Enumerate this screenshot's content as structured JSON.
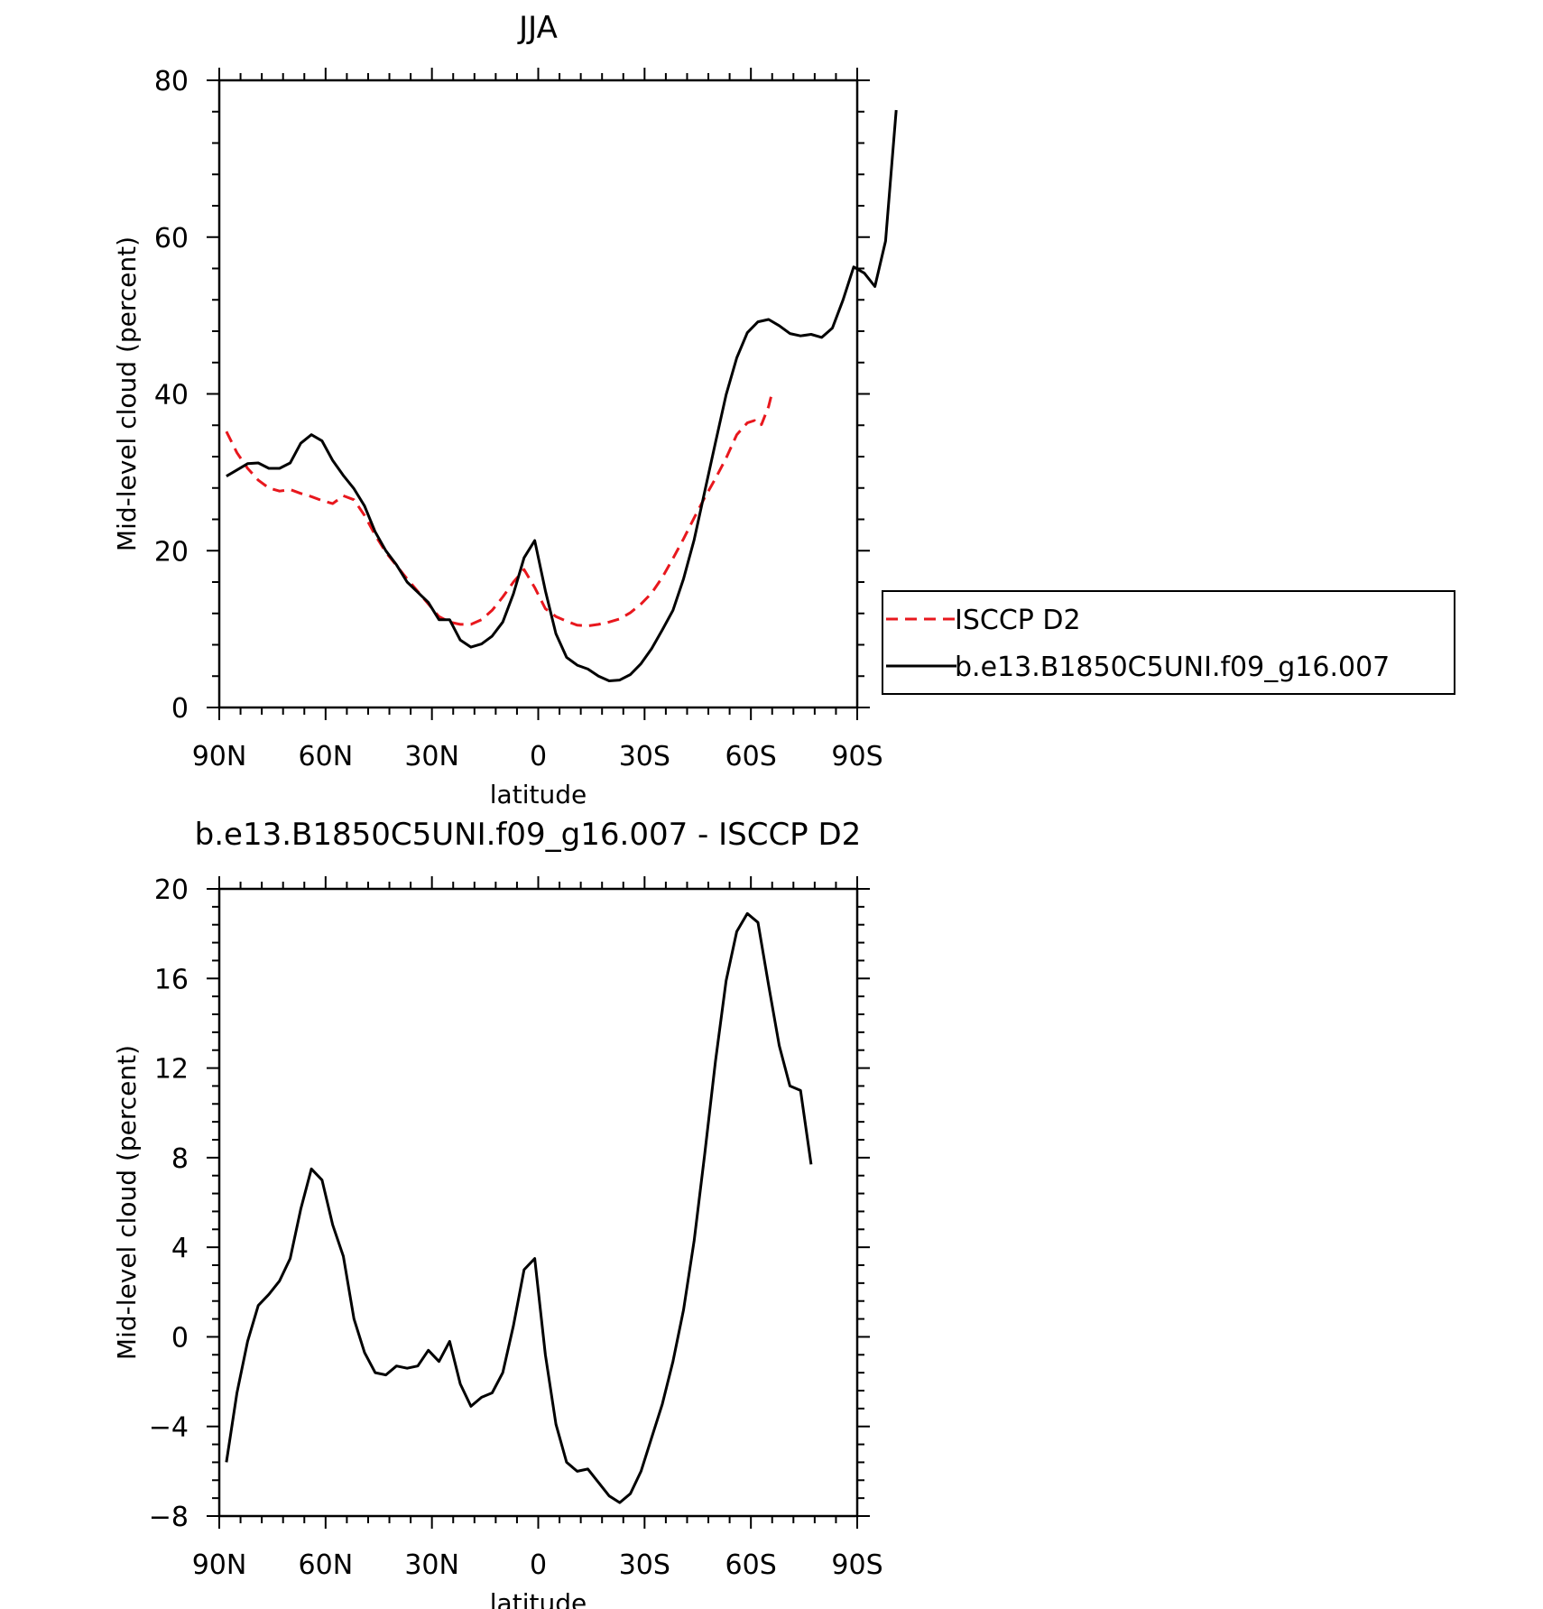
{
  "chart_data": [
    {
      "type": "line",
      "title": "JJA",
      "xlabel": "latitude",
      "ylabel": "Mid-level cloud (percent)",
      "xlim": [
        90,
        -90
      ],
      "ylim": [
        0,
        80
      ],
      "x_ticks": [
        {
          "value": 90,
          "label": "90N"
        },
        {
          "value": 60,
          "label": "60N"
        },
        {
          "value": 30,
          "label": "30N"
        },
        {
          "value": 0,
          "label": "0"
        },
        {
          "value": -30,
          "label": "30S"
        },
        {
          "value": -60,
          "label": "60S"
        },
        {
          "value": -90,
          "label": "90S"
        }
      ],
      "y_ticks": [
        {
          "value": 0,
          "label": "0"
        },
        {
          "value": 20,
          "label": "20"
        },
        {
          "value": 40,
          "label": "40"
        },
        {
          "value": 60,
          "label": "60"
        },
        {
          "value": 80,
          "label": "80"
        }
      ],
      "legend": {
        "position": "right"
      },
      "series": [
        {
          "name": "ISCCP D2",
          "color": "#e8171d",
          "dash": true,
          "points": [
            [
              88,
              35.2
            ],
            [
              85,
              32.5
            ],
            [
              82,
              30.5
            ],
            [
              79,
              29
            ],
            [
              76,
              28
            ],
            [
              73,
              27.6
            ],
            [
              70,
              27.8
            ],
            [
              67,
              27.3
            ],
            [
              64,
              26.9
            ],
            [
              61,
              26.4
            ],
            [
              58,
              26
            ],
            [
              55,
              27
            ],
            [
              52,
              26.5
            ],
            [
              49,
              24.5
            ],
            [
              46,
              22
            ],
            [
              43,
              19.8
            ],
            [
              40,
              18.1
            ],
            [
              37,
              16.4
            ],
            [
              34,
              14.8
            ],
            [
              31,
              13.2
            ],
            [
              28,
              11.6
            ],
            [
              25,
              10.9
            ],
            [
              22,
              10.6
            ],
            [
              19,
              10.6
            ],
            [
              16,
              11.2
            ],
            [
              13,
              12.4
            ],
            [
              10,
              14.1
            ],
            [
              7,
              16
            ],
            [
              4,
              17.6
            ],
            [
              1,
              15.3
            ],
            [
              -2,
              12.6
            ],
            [
              -5,
              11.6
            ],
            [
              -8,
              11
            ],
            [
              -11,
              10.5
            ],
            [
              -14,
              10.4
            ],
            [
              -17,
              10.6
            ],
            [
              -20,
              10.9
            ],
            [
              -23,
              11.3
            ],
            [
              -26,
              12.1
            ],
            [
              -29,
              13.2
            ],
            [
              -32,
              14.6
            ],
            [
              -35,
              16.6
            ],
            [
              -38,
              19
            ],
            [
              -41,
              21.5
            ],
            [
              -44,
              24.2
            ],
            [
              -47,
              26.8
            ],
            [
              -50,
              29.2
            ],
            [
              -53,
              31.8
            ],
            [
              -56,
              34.8
            ],
            [
              -59,
              36.3
            ],
            [
              -61,
              36.6
            ],
            [
              -62,
              36
            ],
            [
              -63,
              36.1
            ],
            [
              -65,
              38.4
            ],
            [
              -66,
              40.2
            ]
          ]
        },
        {
          "name": "b.e13.B1850C5UNI.f09_g16.007",
          "color": "#000000",
          "dash": false,
          "points": [
            [
              88,
              29.5
            ],
            [
              85,
              30.3
            ],
            [
              82,
              31.1
            ],
            [
              79,
              31.2
            ],
            [
              76,
              30.5
            ],
            [
              73,
              30.5
            ],
            [
              70,
              31.2
            ],
            [
              67,
              33.7
            ],
            [
              64,
              34.8
            ],
            [
              61,
              34
            ],
            [
              58,
              31.5
            ],
            [
              55,
              29.6
            ],
            [
              52,
              27.9
            ],
            [
              49,
              25.7
            ],
            [
              46,
              22.4
            ],
            [
              43,
              20
            ],
            [
              40,
              18.2
            ],
            [
              37,
              16
            ],
            [
              34,
              14.7
            ],
            [
              31,
              13.4
            ],
            [
              28,
              11.2
            ],
            [
              25,
              11.2
            ],
            [
              22,
              8.6
            ],
            [
              19,
              7.7
            ],
            [
              16,
              8.1
            ],
            [
              13,
              9.1
            ],
            [
              10,
              10.9
            ],
            [
              7,
              14.5
            ],
            [
              4,
              19.1
            ],
            [
              1,
              21.3
            ],
            [
              -2,
              14.9
            ],
            [
              -5,
              9.4
            ],
            [
              -8,
              6.4
            ],
            [
              -11,
              5.4
            ],
            [
              -14,
              4.9
            ],
            [
              -17,
              4
            ],
            [
              -20,
              3.4
            ],
            [
              -23,
              3.5
            ],
            [
              -26,
              4.2
            ],
            [
              -29,
              5.6
            ],
            [
              -32,
              7.5
            ],
            [
              -35,
              9.9
            ],
            [
              -38,
              12.4
            ],
            [
              -41,
              16.4
            ],
            [
              -44,
              21.4
            ],
            [
              -47,
              27.6
            ],
            [
              -50,
              33.8
            ],
            [
              -53,
              39.9
            ],
            [
              -56,
              44.6
            ],
            [
              -59,
              47.8
            ],
            [
              -62,
              49.2
            ],
            [
              -65,
              49.5
            ],
            [
              -68,
              48.7
            ],
            [
              -71,
              47.7
            ],
            [
              -74,
              47.4
            ],
            [
              -77,
              47.6
            ],
            [
              -80,
              47.2
            ],
            [
              -83,
              48.4
            ],
            [
              -86,
              52
            ],
            [
              -89,
              56.2
            ],
            [
              -92,
              55.4
            ],
            [
              -95,
              53.7
            ],
            [
              -98,
              59.5
            ],
            [
              -101,
              76.2
            ]
          ]
        }
      ]
    },
    {
      "type": "line",
      "title": "b.e13.B1850C5UNI.f09_g16.007 - ISCCP D2",
      "xlabel": "latitude",
      "ylabel": "Mid-level cloud (percent)",
      "xlim": [
        90,
        -90
      ],
      "ylim": [
        -8,
        20
      ],
      "x_ticks": [
        {
          "value": 90,
          "label": "90N"
        },
        {
          "value": 60,
          "label": "60N"
        },
        {
          "value": 30,
          "label": "30N"
        },
        {
          "value": 0,
          "label": "0"
        },
        {
          "value": -30,
          "label": "30S"
        },
        {
          "value": -60,
          "label": "60S"
        },
        {
          "value": -90,
          "label": "90S"
        }
      ],
      "y_ticks": [
        {
          "value": -8,
          "label": "−8"
        },
        {
          "value": -4,
          "label": "−4"
        },
        {
          "value": 0,
          "label": "0"
        },
        {
          "value": 4,
          "label": "4"
        },
        {
          "value": 8,
          "label": "8"
        },
        {
          "value": 12,
          "label": "12"
        },
        {
          "value": 16,
          "label": "16"
        },
        {
          "value": 20,
          "label": "20"
        }
      ],
      "series": [
        {
          "color": "#000000",
          "dash": false,
          "points": [
            [
              88,
              -5.6
            ],
            [
              85,
              -2.5
            ],
            [
              82,
              -0.2
            ],
            [
              79,
              1.4
            ],
            [
              76,
              1.9
            ],
            [
              73,
              2.5
            ],
            [
              70,
              3.5
            ],
            [
              67,
              5.7
            ],
            [
              64,
              7.5
            ],
            [
              61,
              7
            ],
            [
              58,
              5
            ],
            [
              55,
              3.6
            ],
            [
              52,
              0.8
            ],
            [
              49,
              -0.7
            ],
            [
              46,
              -1.6
            ],
            [
              43,
              -1.7
            ],
            [
              40,
              -1.3
            ],
            [
              37,
              -1.4
            ],
            [
              34,
              -1.3
            ],
            [
              31,
              -0.6
            ],
            [
              28,
              -1.1
            ],
            [
              25,
              -0.2
            ],
            [
              22,
              -2.1
            ],
            [
              19,
              -3.1
            ],
            [
              16,
              -2.7
            ],
            [
              13,
              -2.5
            ],
            [
              10,
              -1.6
            ],
            [
              7,
              0.5
            ],
            [
              4,
              3
            ],
            [
              1,
              3.5
            ],
            [
              -2,
              -0.8
            ],
            [
              -5,
              -3.9
            ],
            [
              -8,
              -5.6
            ],
            [
              -11,
              -6
            ],
            [
              -14,
              -5.9
            ],
            [
              -17,
              -6.5
            ],
            [
              -20,
              -7.1
            ],
            [
              -23,
              -7.4
            ],
            [
              -26,
              -7
            ],
            [
              -29,
              -6
            ],
            [
              -32,
              -4.5
            ],
            [
              -35,
              -3
            ],
            [
              -38,
              -1.1
            ],
            [
              -41,
              1.2
            ],
            [
              -44,
              4.3
            ],
            [
              -47,
              8.2
            ],
            [
              -50,
              12.3
            ],
            [
              -53,
              15.9
            ],
            [
              -56,
              18.1
            ],
            [
              -59,
              18.9
            ],
            [
              -62,
              18.5
            ],
            [
              -65,
              15.7
            ],
            [
              -68,
              13
            ],
            [
              -71,
              11.2
            ],
            [
              -74,
              11
            ],
            [
              -77,
              7.7
            ]
          ]
        }
      ]
    }
  ]
}
